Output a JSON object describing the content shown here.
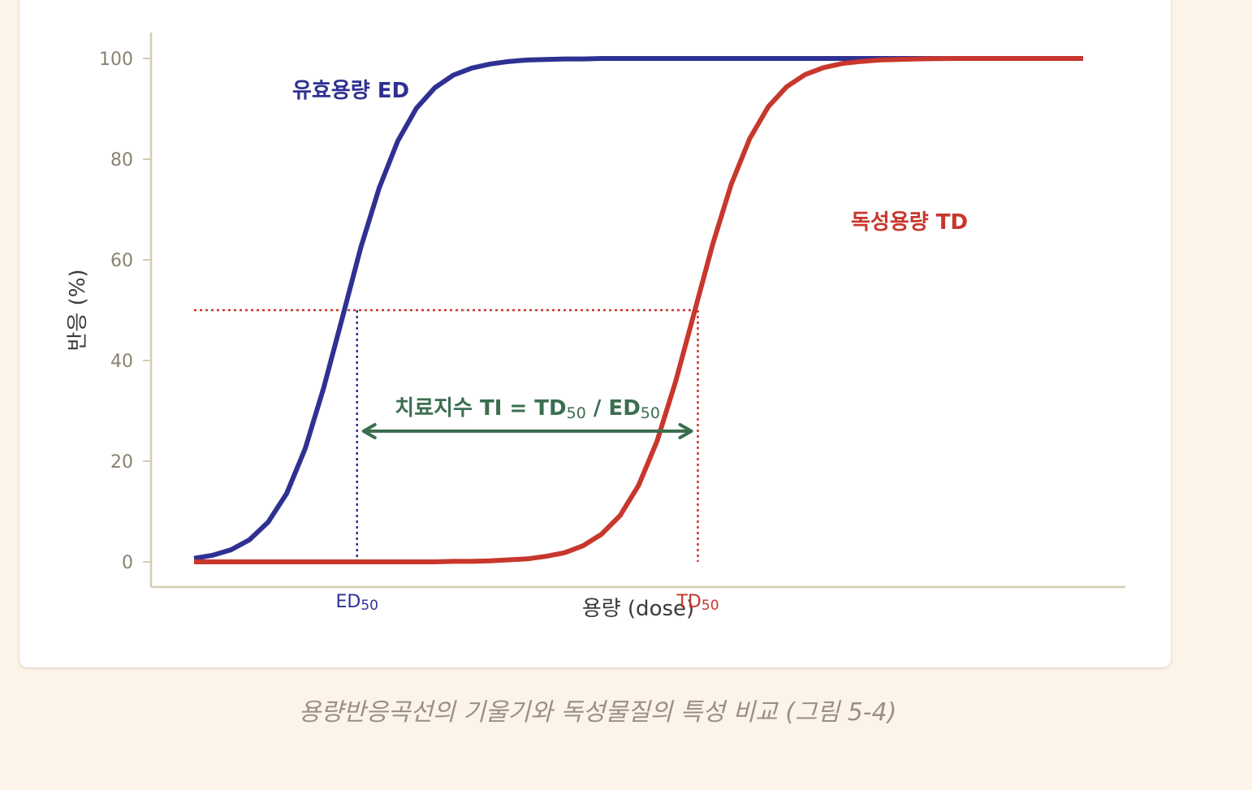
{
  "caption": "용량반응곡선의 기울기와 독성물질의 특성 비교 (그림 5-4)",
  "colors": {
    "ed": "#2e3192",
    "td": "#c8372d",
    "ti": "#3b6e4f",
    "axis": "#d6ccb4",
    "tick_text": "#8a8170",
    "caption": "#9a8f82",
    "background": "#fcf3e9"
  },
  "chart_data": {
    "type": "line",
    "title": "",
    "xlabel": "용량 (dose)",
    "ylabel": "반응 (%)",
    "ylim": [
      0,
      100
    ],
    "yticks": [
      0,
      20,
      40,
      60,
      80,
      100
    ],
    "x_tick_labels_shown": false,
    "grid": false,
    "xlim": [
      0,
      24
    ],
    "x": [
      0,
      0.5,
      1,
      1.5,
      2,
      2.5,
      3,
      3.5,
      4,
      4.5,
      5,
      5.5,
      6,
      6.5,
      7,
      7.5,
      8,
      8.5,
      9,
      9.5,
      10,
      10.5,
      11,
      11.5,
      12,
      12.5,
      13,
      13.5,
      14,
      14.5,
      15,
      15.5,
      16,
      16.5,
      17,
      17.5,
      18,
      18.5,
      19,
      19.5,
      20,
      20.5,
      21,
      21.5,
      22,
      22.5,
      23,
      23.5,
      24
    ],
    "series": [
      {
        "name": "유효용량 ED",
        "color": "#2e3192",
        "values": [
          0.7,
          1.3,
          2.4,
          4.4,
          7.9,
          13.6,
          22.5,
          34.6,
          48.4,
          62.4,
          74.3,
          83.6,
          90.1,
          94.2,
          96.7,
          98.1,
          98.9,
          99.4,
          99.7,
          99.8,
          99.9,
          99.9,
          100,
          100,
          100,
          100,
          100,
          100,
          100,
          100,
          100,
          100,
          100,
          100,
          100,
          100,
          100,
          100,
          100,
          100,
          100,
          100,
          100,
          100,
          100,
          100,
          100,
          100,
          100
        ]
      },
      {
        "name": "독성용량 TD",
        "color": "#c8372d",
        "values": [
          0,
          0,
          0,
          0,
          0,
          0,
          0,
          0,
          0,
          0,
          0,
          0,
          0,
          0,
          0.1,
          0.1,
          0.2,
          0.4,
          0.6,
          1.1,
          1.8,
          3.2,
          5.5,
          9.2,
          15.2,
          24.0,
          35.8,
          49.4,
          63.1,
          75.0,
          84.1,
          90.4,
          94.4,
          96.8,
          98.2,
          99.0,
          99.4,
          99.7,
          99.8,
          99.9,
          99.95,
          100,
          100,
          100,
          100,
          100,
          100,
          100,
          100
        ]
      }
    ],
    "reference": {
      "response_level": 50,
      "ed50_x": 4.4,
      "td50_x": 13.6,
      "ed50_label": "ED",
      "td50_label": "TD",
      "subscript": "50"
    },
    "annotation": {
      "ti_main": "치료지수 TI = TD",
      "ti_sub1": "50",
      "ti_mid": " / ED",
      "ti_sub2": "50"
    }
  }
}
